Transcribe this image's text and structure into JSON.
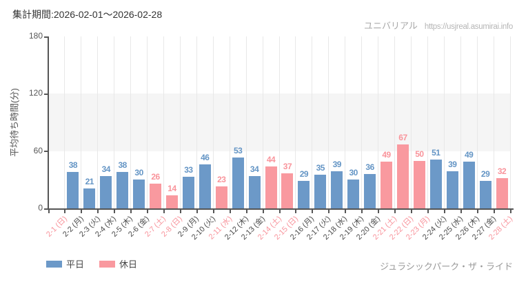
{
  "header": {
    "period_label": "集計期間:2026-02-01〜2026-02-28",
    "site_name": "ユニバリアル",
    "site_url": "https://usjreal.asumirai.info"
  },
  "legend": {
    "weekday_label": "平日",
    "holiday_label": "休日"
  },
  "footer": {
    "attraction_name": "ジュラシックパーク・ザ・ライド"
  },
  "colors": {
    "weekday_bar": "#6c99c8",
    "holiday_bar": "#f9999f",
    "weekday_value_text": "#6495c5",
    "holiday_value_text": "#f9949b",
    "weekday_tick_text": "#4a4a4a",
    "holiday_tick_text": "#f8939b",
    "axis": "#555555",
    "gridline": "#e8e8e8",
    "band": "#f5f5f5"
  },
  "chart_data": {
    "type": "bar",
    "title": "",
    "xlabel": "",
    "ylabel": "平均待ち時間(分)",
    "ylim": [
      0,
      180
    ],
    "yticks": [
      0,
      60,
      120,
      180
    ],
    "grid": "vertical category gridlines; shaded horizontal band between y=60 and y=120",
    "legend_position": "bottom-left",
    "legend": [
      {
        "key": "weekday",
        "label": "平日",
        "color": "#6c99c8"
      },
      {
        "key": "holiday",
        "label": "休日",
        "color": "#f9999f"
      }
    ],
    "categories": [
      "2-1 (日)",
      "2-2 (月)",
      "2-3 (火)",
      "2-4 (水)",
      "2-5 (木)",
      "2-6 (金)",
      "2-7 (土)",
      "2-8 (日)",
      "2-9 (月)",
      "2-10 (火)",
      "2-11 (水)",
      "2-12 (木)",
      "2-13 (金)",
      "2-14 (土)",
      "2-15 (日)",
      "2-16 (月)",
      "2-17 (火)",
      "2-18 (水)",
      "2-19 (木)",
      "2-20 (金)",
      "2-21 (土)",
      "2-22 (日)",
      "2-23 (月)",
      "2-24 (火)",
      "2-25 (水)",
      "2-26 (木)",
      "2-27 (金)",
      "2-28 (土)"
    ],
    "values": [
      null,
      38,
      21,
      34,
      38,
      30,
      26,
      14,
      33,
      46,
      23,
      53,
      34,
      44,
      37,
      29,
      35,
      39,
      30,
      36,
      49,
      67,
      50,
      51,
      39,
      49,
      29,
      32
    ],
    "day_types": [
      "holiday",
      "weekday",
      "weekday",
      "weekday",
      "weekday",
      "weekday",
      "holiday",
      "holiday",
      "weekday",
      "weekday",
      "holiday",
      "weekday",
      "weekday",
      "holiday",
      "holiday",
      "weekday",
      "weekday",
      "weekday",
      "weekday",
      "weekday",
      "holiday",
      "holiday",
      "holiday",
      "weekday",
      "weekday",
      "weekday",
      "weekday",
      "holiday"
    ]
  }
}
